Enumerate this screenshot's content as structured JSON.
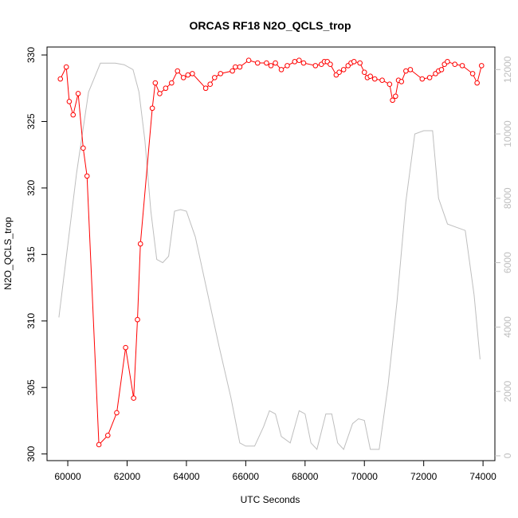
{
  "chart_data": {
    "type": "line",
    "title": "ORCAS RF18 N2O_QCLS_trop",
    "xlabel": "UTC Seconds",
    "ylabel": "N2O_QCLS_trop",
    "xlim": [
      59300,
      74400
    ],
    "ylim": [
      299.5,
      330.6
    ],
    "y2lim": [
      -150,
      12700
    ],
    "x_ticks": [
      60000,
      62000,
      64000,
      66000,
      68000,
      70000,
      72000,
      74000
    ],
    "y_ticks": [
      300,
      305,
      310,
      315,
      320,
      325,
      330
    ],
    "y2_ticks": [
      0,
      2000,
      4000,
      6000,
      8000,
      10000,
      12000
    ],
    "grid": false,
    "series": [
      {
        "color": "#ff0000",
        "style": "line+circle-markers",
        "axis": "left",
        "points": [
          [
            59750,
            328.2
          ],
          [
            59950,
            329.1
          ],
          [
            60050,
            326.5
          ],
          [
            60180,
            325.5
          ],
          [
            60350,
            327.1
          ],
          [
            60520,
            323.0
          ],
          [
            60650,
            320.9
          ],
          [
            61050,
            300.7
          ],
          [
            61350,
            301.4
          ],
          [
            61650,
            303.1
          ],
          [
            61950,
            308.0
          ],
          [
            62220,
            304.2
          ],
          [
            62350,
            310.1
          ],
          [
            62450,
            315.8
          ],
          [
            62850,
            326.0
          ],
          [
            62950,
            327.9
          ],
          [
            63100,
            327.1
          ],
          [
            63300,
            327.5
          ],
          [
            63500,
            327.9
          ],
          [
            63700,
            328.8
          ],
          [
            63900,
            328.3
          ],
          [
            64050,
            328.5
          ],
          [
            64200,
            328.6
          ],
          [
            64650,
            327.5
          ],
          [
            64800,
            327.8
          ],
          [
            64950,
            328.3
          ],
          [
            65150,
            328.6
          ],
          [
            65550,
            328.8
          ],
          [
            65650,
            329.1
          ],
          [
            65800,
            329.1
          ],
          [
            66100,
            329.6
          ],
          [
            66400,
            329.4
          ],
          [
            66700,
            329.4
          ],
          [
            66850,
            329.2
          ],
          [
            67000,
            329.4
          ],
          [
            67200,
            328.9
          ],
          [
            67400,
            329.2
          ],
          [
            67650,
            329.5
          ],
          [
            67800,
            329.6
          ],
          [
            67950,
            329.4
          ],
          [
            68350,
            329.2
          ],
          [
            68550,
            329.3
          ],
          [
            68650,
            329.5
          ],
          [
            68750,
            329.5
          ],
          [
            68850,
            329.3
          ],
          [
            69050,
            328.5
          ],
          [
            69150,
            328.7
          ],
          [
            69300,
            328.9
          ],
          [
            69450,
            329.2
          ],
          [
            69550,
            329.4
          ],
          [
            69650,
            329.5
          ],
          [
            69850,
            329.4
          ],
          [
            70000,
            328.7
          ],
          [
            70100,
            328.3
          ],
          [
            70200,
            328.4
          ],
          [
            70350,
            328.2
          ],
          [
            70600,
            328.1
          ],
          [
            70850,
            327.8
          ],
          [
            70950,
            326.6
          ],
          [
            71050,
            326.9
          ],
          [
            71150,
            328.1
          ],
          [
            71250,
            328.0
          ],
          [
            71400,
            328.8
          ],
          [
            71550,
            328.9
          ],
          [
            71950,
            328.2
          ],
          [
            72200,
            328.3
          ],
          [
            72400,
            328.6
          ],
          [
            72500,
            328.8
          ],
          [
            72600,
            328.9
          ],
          [
            72700,
            329.3
          ],
          [
            72800,
            329.5
          ],
          [
            73050,
            329.3
          ],
          [
            73300,
            329.2
          ],
          [
            73650,
            328.6
          ],
          [
            73800,
            327.9
          ],
          [
            73950,
            329.2
          ]
        ]
      },
      {
        "color": "#bebebe",
        "style": "line",
        "axis": "right",
        "points": [
          [
            59700,
            4300
          ],
          [
            60300,
            8800
          ],
          [
            60700,
            11300
          ],
          [
            61100,
            12200
          ],
          [
            61600,
            12200
          ],
          [
            61900,
            12150
          ],
          [
            62200,
            12000
          ],
          [
            62400,
            11300
          ],
          [
            62600,
            9800
          ],
          [
            62800,
            7600
          ],
          [
            63000,
            6100
          ],
          [
            63200,
            6000
          ],
          [
            63400,
            6200
          ],
          [
            63600,
            7600
          ],
          [
            63800,
            7650
          ],
          [
            64000,
            7600
          ],
          [
            64300,
            6800
          ],
          [
            64700,
            5100
          ],
          [
            65100,
            3400
          ],
          [
            65500,
            1800
          ],
          [
            65800,
            400
          ],
          [
            66000,
            300
          ],
          [
            66300,
            300
          ],
          [
            66600,
            900
          ],
          [
            66800,
            1400
          ],
          [
            67000,
            1300
          ],
          [
            67200,
            600
          ],
          [
            67500,
            400
          ],
          [
            67800,
            1400
          ],
          [
            68000,
            1300
          ],
          [
            68200,
            400
          ],
          [
            68400,
            200
          ],
          [
            68700,
            1300
          ],
          [
            68900,
            1300
          ],
          [
            69100,
            400
          ],
          [
            69300,
            200
          ],
          [
            69600,
            1000
          ],
          [
            69800,
            1150
          ],
          [
            70000,
            1100
          ],
          [
            70200,
            200
          ],
          [
            70500,
            200
          ],
          [
            70800,
            2200
          ],
          [
            71100,
            4800
          ],
          [
            71400,
            7900
          ],
          [
            71700,
            10000
          ],
          [
            72000,
            10100
          ],
          [
            72300,
            10100
          ],
          [
            72500,
            8000
          ],
          [
            72800,
            7200
          ],
          [
            73100,
            7100
          ],
          [
            73400,
            7000
          ],
          [
            73700,
            5000
          ],
          [
            73900,
            3000
          ]
        ]
      }
    ]
  }
}
